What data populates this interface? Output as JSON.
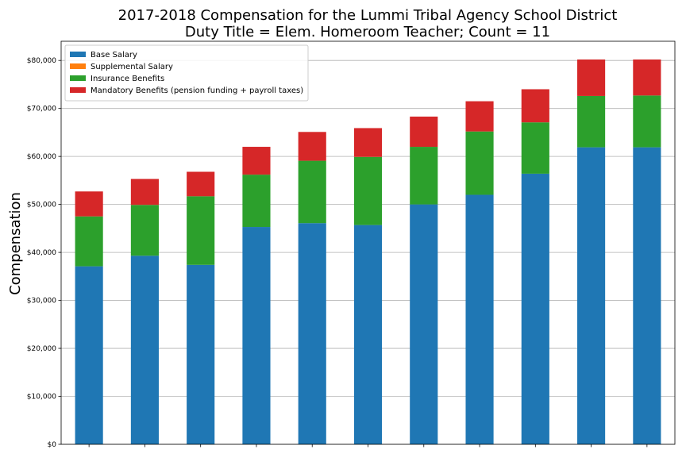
{
  "chart_data": {
    "type": "bar",
    "stacked": true,
    "title_lines": [
      "2017-2018 Compensation for the Lummi Tribal Agency School District",
      "Duty Title = Elem. Homeroom Teacher; Count = 11"
    ],
    "xlabel": "",
    "ylabel": "Compensation",
    "ylim": [
      0,
      84000
    ],
    "yticks": [
      0,
      10000,
      20000,
      30000,
      40000,
      50000,
      60000,
      70000,
      80000
    ],
    "ytick_labels": [
      "$0",
      "$10,000",
      "$20,000",
      "$30,000",
      "$40,000",
      "$50,000",
      "$60,000",
      "$70,000",
      "$80,000"
    ],
    "grid": "horizontal",
    "legend_position": "top-left",
    "categories_count": 11,
    "series": [
      {
        "name": "Base Salary",
        "color": "#1f77b4",
        "values": [
          37100,
          39300,
          37400,
          45300,
          46100,
          45700,
          50000,
          52000,
          56400,
          61900,
          61900
        ]
      },
      {
        "name": "Supplemental Salary",
        "color": "#ff7f0e",
        "values": [
          0,
          0,
          0,
          0,
          0,
          0,
          0,
          0,
          0,
          0,
          0
        ]
      },
      {
        "name": "Insurance Benefits",
        "color": "#2ca02c",
        "values": [
          10400,
          10600,
          14300,
          10900,
          13000,
          14200,
          12000,
          13200,
          10700,
          10700,
          10800
        ]
      },
      {
        "name": "Mandatory Benefits (pension funding + payroll taxes)",
        "color": "#d62728",
        "values": [
          5200,
          5400,
          5100,
          5800,
          6000,
          6000,
          6300,
          6300,
          6900,
          7600,
          7500
        ]
      }
    ]
  }
}
